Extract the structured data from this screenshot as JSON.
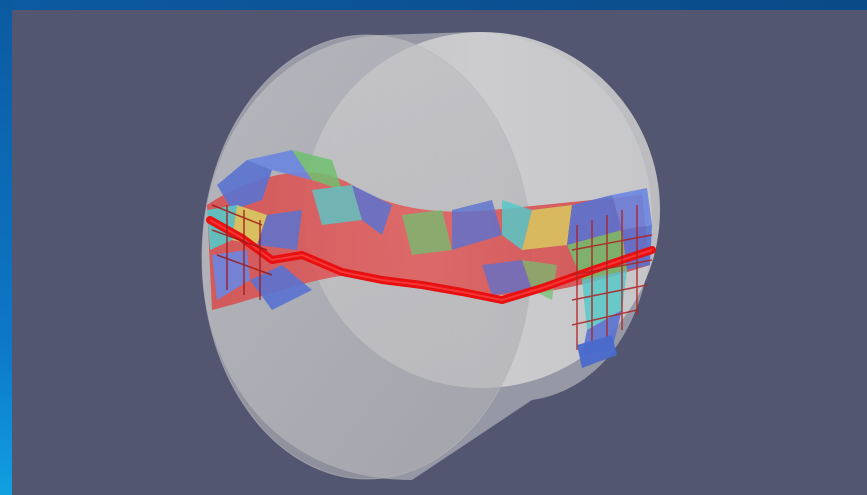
{
  "window": {
    "title": ""
  },
  "viewport": {
    "background_color": "#525670",
    "scene": "3d-render",
    "objects": [
      {
        "name": "translucent-cylinder",
        "color": "#d7d7d7"
      },
      {
        "name": "fracture-surface-mesh",
        "color": "#e04848"
      },
      {
        "name": "fracture-trace-line",
        "color": "#e81010"
      }
    ]
  },
  "colors": {
    "frame_blue": "#0b5aa0",
    "viewport_bg": "#525670",
    "cylinder": "#d7d7d7",
    "fracture_red": "#e81010",
    "mesh_blue": "#5a72d0",
    "mesh_green": "#70c070",
    "mesh_cyan": "#58c8c8",
    "mesh_yellow": "#d8d060"
  }
}
